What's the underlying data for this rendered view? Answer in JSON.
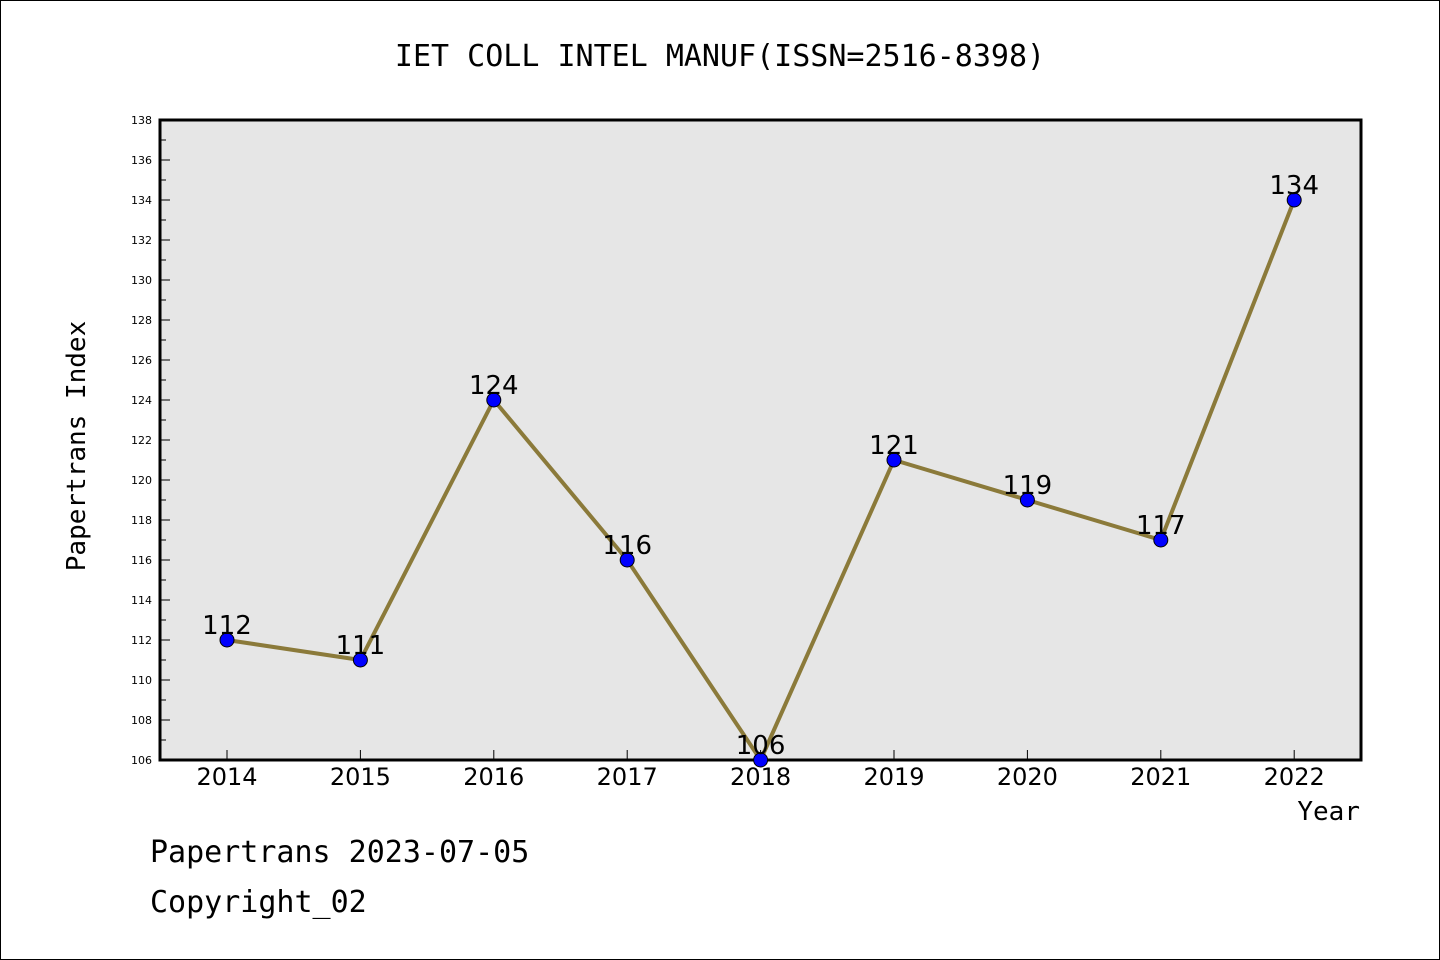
{
  "chart_data": {
    "type": "line",
    "title": "IET COLL INTEL MANUF(ISSN=2516-8398)",
    "xlabel": "Year",
    "ylabel": "Papertrans Index",
    "x": [
      "2014",
      "2015",
      "2016",
      "2017",
      "2018",
      "2019",
      "2020",
      "2021",
      "2022"
    ],
    "series": [
      {
        "values": [
          112,
          111,
          124,
          116,
          106,
          121,
          119,
          117,
          134
        ]
      }
    ],
    "data_labels": [
      "112",
      "111",
      "124",
      "116",
      "106",
      "121",
      "119",
      "117",
      "134"
    ],
    "ylim": [
      106,
      138
    ],
    "yticks": [
      "106",
      "108",
      "110",
      "112",
      "114",
      "116",
      "118",
      "120",
      "122",
      "124",
      "126",
      "128",
      "130",
      "132",
      "134",
      "136",
      "138"
    ],
    "grid": false,
    "line_color": "#8b7a3a",
    "marker_color": "#0000ff",
    "plot_background": "#e6e6e6"
  },
  "footer": {
    "line1": "Papertrans 2023-07-05",
    "line2": "Copyright_02"
  }
}
